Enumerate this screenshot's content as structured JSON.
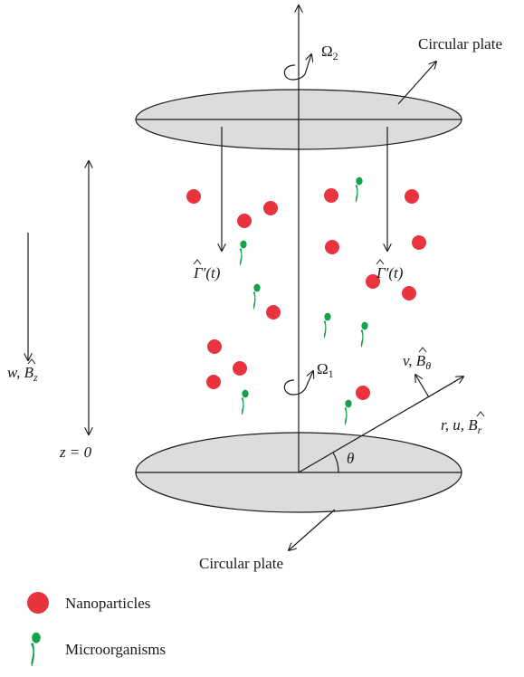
{
  "labels": {
    "top_plate": "Circular plate",
    "bottom_plate": "Circular plate",
    "omega_top": "Ω",
    "omega_top_sub": "2",
    "omega_bottom": "Ω",
    "omega_bottom_sub": "1",
    "gamma_symbol": "Γ",
    "gamma_tail": "′(t)",
    "w_label": "w, ",
    "b_symbol": "B",
    "b_z_sub": "z",
    "v_label": "v, ",
    "b_theta_sub": "θ",
    "r_label": "r, u, ",
    "b_r_sub": "r",
    "z_zero": "z = 0",
    "theta": "θ"
  },
  "legend": [
    {
      "label": "Nanoparticles",
      "icon": "red-dot"
    },
    {
      "label": "Microorganisms",
      "icon": "green-microorganism"
    }
  ],
  "colors": {
    "plate_fill": "#dcdcdc",
    "line": "#1a1a1a",
    "nanoparticle": "#e8343f",
    "microorganism": "#12a24a"
  }
}
